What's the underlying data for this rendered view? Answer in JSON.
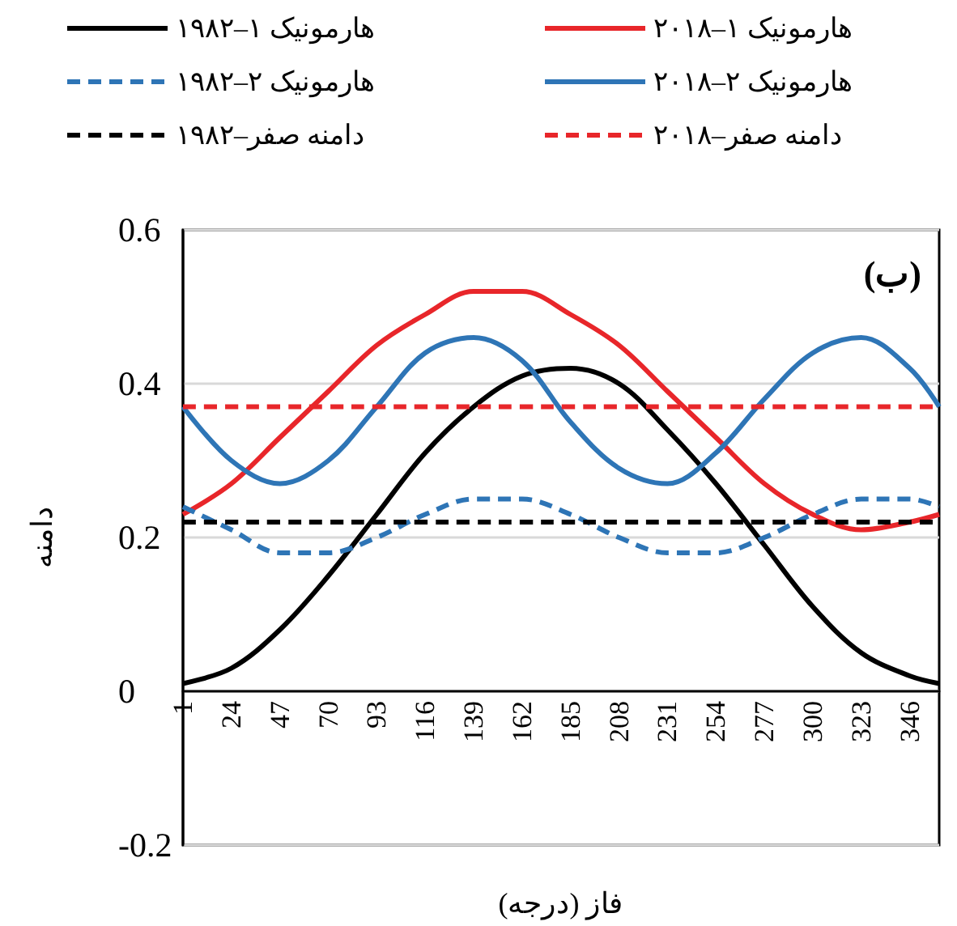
{
  "chart_data": {
    "type": "line",
    "xlabel": "فاز (درجه)",
    "ylabel": "دامنه",
    "annotations": [
      "(ب)"
    ],
    "x": [
      1,
      24,
      47,
      70,
      93,
      116,
      139,
      162,
      185,
      208,
      231,
      254,
      277,
      300,
      323,
      346,
      360
    ],
    "xlim": [
      1,
      360
    ],
    "xticks": [
      1,
      24,
      47,
      70,
      93,
      116,
      139,
      162,
      185,
      208,
      231,
      254,
      277,
      300,
      323,
      346
    ],
    "ylim": [
      -0.2,
      0.6
    ],
    "yticks": [
      -0.2,
      0,
      0.2,
      0.4,
      0.6
    ],
    "grid": "y",
    "legend": "top",
    "marker": "none",
    "series": [
      {
        "name": "هارمونیک ۱–۲۰۱۸",
        "color": "#e8262a",
        "line_style": "solid",
        "values": [
          0.23,
          0.27,
          0.33,
          0.39,
          0.45,
          0.49,
          0.52,
          0.52,
          0.49,
          0.45,
          0.39,
          0.33,
          0.27,
          0.23,
          0.21,
          0.22,
          0.23
        ]
      },
      {
        "name": "هارمونیک ۱–۱۹۸۲",
        "color": "#000000",
        "line_style": "solid",
        "values": [
          0.01,
          0.03,
          0.08,
          0.15,
          0.23,
          0.31,
          0.37,
          0.41,
          0.42,
          0.4,
          0.34,
          0.27,
          0.19,
          0.11,
          0.05,
          0.02,
          0.01
        ]
      },
      {
        "name": "هارمونیک ۲–۲۰۱۸",
        "color": "#2e75b6",
        "line_style": "solid",
        "values": [
          0.37,
          0.3,
          0.27,
          0.3,
          0.37,
          0.44,
          0.46,
          0.43,
          0.35,
          0.29,
          0.27,
          0.31,
          0.38,
          0.44,
          0.46,
          0.42,
          0.37
        ]
      },
      {
        "name": "هارمونیک ۲–۱۹۸۲",
        "color": "#2e75b6",
        "line_style": "dashed",
        "values": [
          0.24,
          0.21,
          0.18,
          0.18,
          0.2,
          0.23,
          0.25,
          0.25,
          0.23,
          0.2,
          0.18,
          0.18,
          0.2,
          0.23,
          0.25,
          0.25,
          0.24
        ]
      },
      {
        "name": "دامنه صفر–۲۰۱۸",
        "color": "#e8262a",
        "line_style": "dashed",
        "values": [
          0.37,
          0.37,
          0.37,
          0.37,
          0.37,
          0.37,
          0.37,
          0.37,
          0.37,
          0.37,
          0.37,
          0.37,
          0.37,
          0.37,
          0.37,
          0.37,
          0.37
        ]
      },
      {
        "name": "دامنه صفر–۱۹۸۲",
        "color": "#000000",
        "line_style": "dashed",
        "values": [
          0.22,
          0.22,
          0.22,
          0.22,
          0.22,
          0.22,
          0.22,
          0.22,
          0.22,
          0.22,
          0.22,
          0.22,
          0.22,
          0.22,
          0.22,
          0.22,
          0.22
        ]
      }
    ]
  }
}
